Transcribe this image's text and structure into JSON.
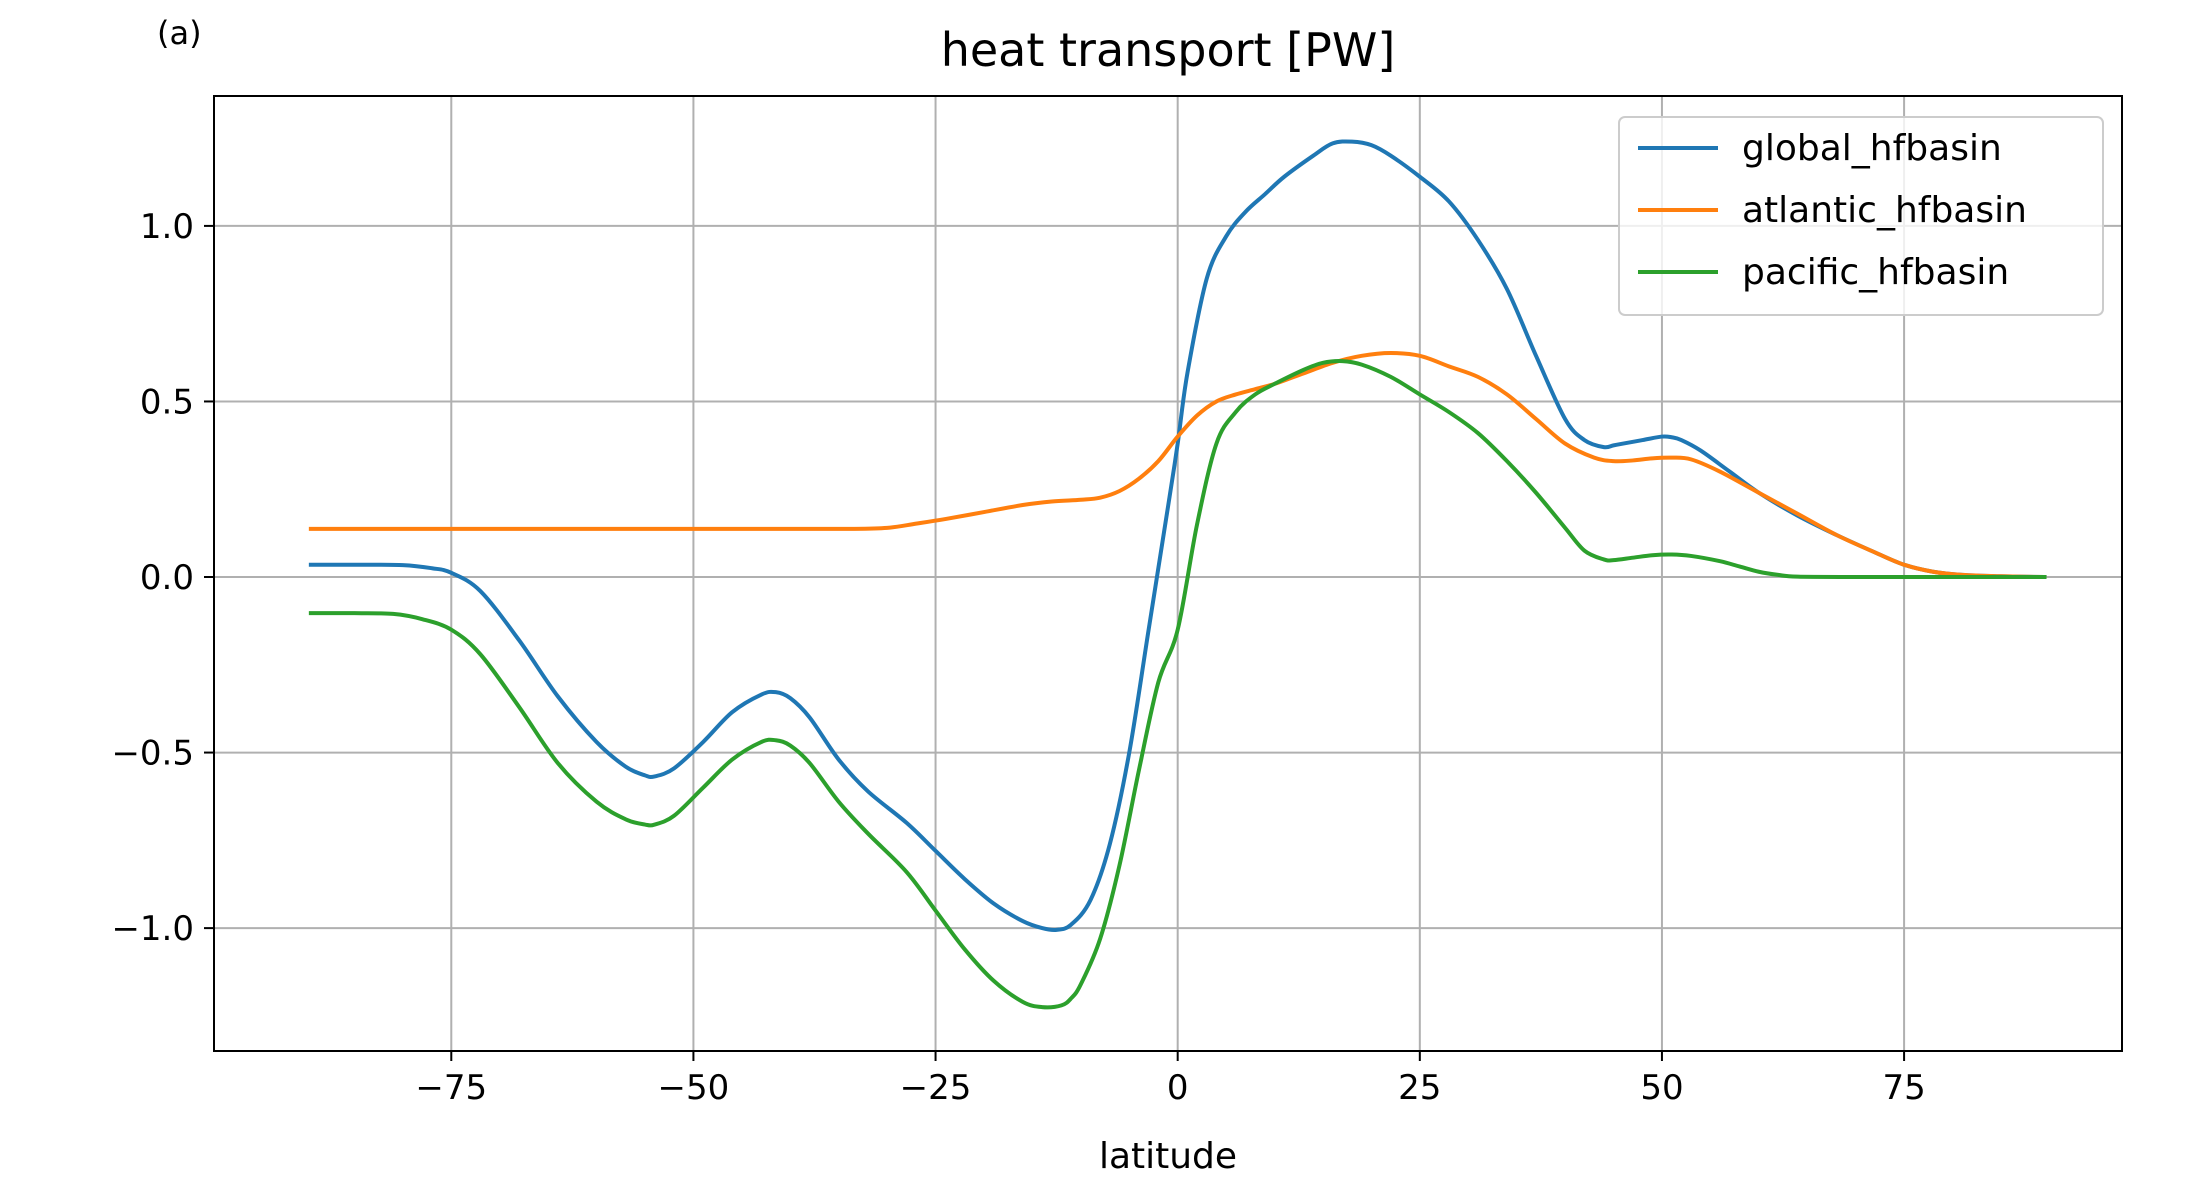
{
  "panel_label": "(a)",
  "chart_data": {
    "type": "line",
    "title": "heat transport [PW]",
    "xlabel": "latitude",
    "ylabel": "",
    "xlim": [
      -99.5,
      97.5
    ],
    "ylim": [
      -1.35,
      1.37
    ],
    "xticks": [
      -75,
      -50,
      -25,
      0,
      25,
      50,
      75
    ],
    "xtick_labels": [
      "−75",
      "−50",
      "−25",
      "0",
      "25",
      "50",
      "75"
    ],
    "yticks": [
      -1.0,
      -0.5,
      0.0,
      0.5,
      1.0
    ],
    "ytick_labels": [
      "−1.0",
      "−0.5",
      "0.0",
      "0.5",
      "1.0"
    ],
    "grid": true,
    "legend_position": "top-right",
    "series": [
      {
        "name": "global_hfbasin",
        "color": "#1f77b4",
        "x": [
          -89.5,
          -85,
          -80,
          -77,
          -75,
          -72,
          -68,
          -64,
          -60,
          -57,
          -55,
          -54,
          -52,
          -49,
          -46,
          -43,
          -41.5,
          -40,
          -38,
          -35,
          -32,
          -28,
          -25,
          -22,
          -19,
          -16,
          -14,
          -12.5,
          -11,
          -9,
          -7,
          -5,
          -3,
          -1,
          0,
          1,
          3,
          5,
          7,
          9,
          11,
          14,
          16,
          18,
          20,
          22,
          25,
          28,
          31,
          34,
          37,
          40,
          42,
          44,
          45,
          46,
          48,
          50,
          51,
          52,
          54,
          57,
          60,
          64,
          68,
          72,
          75,
          78,
          81,
          85,
          89.5
        ],
        "y": [
          0.035,
          0.035,
          0.034,
          0.025,
          0.012,
          -0.04,
          -0.18,
          -0.34,
          -0.47,
          -0.54,
          -0.565,
          -0.568,
          -0.545,
          -0.47,
          -0.385,
          -0.335,
          -0.328,
          -0.345,
          -0.4,
          -0.52,
          -0.61,
          -0.7,
          -0.78,
          -0.86,
          -0.93,
          -0.98,
          -1.0,
          -1.005,
          -0.99,
          -0.92,
          -0.76,
          -0.5,
          -0.15,
          0.2,
          0.38,
          0.58,
          0.85,
          0.97,
          1.04,
          1.09,
          1.14,
          1.2,
          1.235,
          1.24,
          1.23,
          1.2,
          1.14,
          1.07,
          0.96,
          0.82,
          0.63,
          0.45,
          0.39,
          0.37,
          0.375,
          0.38,
          0.39,
          0.4,
          0.398,
          0.39,
          0.36,
          0.3,
          0.24,
          0.175,
          0.12,
          0.07,
          0.035,
          0.015,
          0.006,
          0.002,
          0.0
        ]
      },
      {
        "name": "atlantic_hfbasin",
        "color": "#ff7f0e",
        "x": [
          -89.5,
          -80,
          -70,
          -60,
          -50,
          -40,
          -34,
          -30,
          -27,
          -24,
          -20,
          -16,
          -13,
          -10,
          -8,
          -6,
          -4,
          -2,
          0,
          2,
          4,
          6,
          8,
          10,
          13,
          16,
          19,
          22,
          25,
          28,
          31,
          34,
          37,
          40,
          43,
          45,
          47,
          49,
          51,
          53,
          56,
          60,
          64,
          68,
          72,
          75,
          78,
          81,
          85,
          89.5
        ],
        "y": [
          0.137,
          0.137,
          0.137,
          0.137,
          0.137,
          0.137,
          0.137,
          0.14,
          0.152,
          0.165,
          0.185,
          0.205,
          0.215,
          0.22,
          0.226,
          0.245,
          0.28,
          0.33,
          0.4,
          0.46,
          0.5,
          0.52,
          0.535,
          0.55,
          0.58,
          0.61,
          0.63,
          0.638,
          0.63,
          0.6,
          0.57,
          0.52,
          0.45,
          0.38,
          0.34,
          0.33,
          0.332,
          0.338,
          0.34,
          0.335,
          0.3,
          0.24,
          0.18,
          0.12,
          0.07,
          0.035,
          0.015,
          0.006,
          0.002,
          0.0
        ]
      },
      {
        "name": "pacific_hfbasin",
        "color": "#2ca02c",
        "x": [
          -89.5,
          -85,
          -81,
          -78,
          -75,
          -72,
          -68,
          -64,
          -60,
          -57,
          -55,
          -54,
          -52,
          -49,
          -46,
          -43,
          -41.5,
          -40,
          -38,
          -35,
          -32,
          -28,
          -25,
          -22,
          -19,
          -16,
          -14,
          -12,
          -11,
          -10,
          -8,
          -6,
          -4,
          -2,
          0,
          2,
          4,
          6,
          8,
          10,
          13,
          15,
          17,
          19,
          22,
          25,
          28,
          31,
          34,
          37,
          40,
          42,
          44,
          45,
          47,
          49,
          51,
          53,
          56,
          58,
          60,
          62,
          64,
          70,
          80,
          89.5
        ],
        "y": [
          -0.103,
          -0.103,
          -0.105,
          -0.12,
          -0.15,
          -0.22,
          -0.37,
          -0.53,
          -0.64,
          -0.69,
          -0.705,
          -0.705,
          -0.68,
          -0.6,
          -0.52,
          -0.47,
          -0.465,
          -0.48,
          -0.53,
          -0.64,
          -0.73,
          -0.84,
          -0.95,
          -1.06,
          -1.15,
          -1.21,
          -1.225,
          -1.22,
          -1.2,
          -1.16,
          -1.03,
          -0.82,
          -0.55,
          -0.3,
          -0.15,
          0.15,
          0.38,
          0.47,
          0.52,
          0.55,
          0.59,
          0.61,
          0.615,
          0.605,
          0.57,
          0.52,
          0.47,
          0.41,
          0.33,
          0.24,
          0.14,
          0.075,
          0.05,
          0.048,
          0.055,
          0.062,
          0.064,
          0.06,
          0.045,
          0.03,
          0.015,
          0.006,
          0.001,
          0.0,
          0.0,
          0.0
        ]
      }
    ]
  }
}
